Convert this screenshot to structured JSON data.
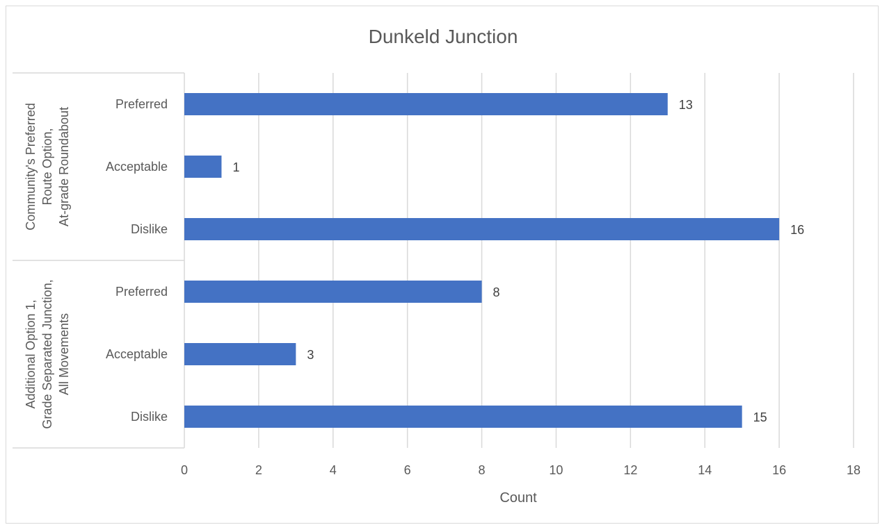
{
  "chart_data": {
    "type": "bar",
    "orientation": "horizontal",
    "title": "Dunkeld Junction",
    "xlabel": "Count",
    "ylabel": "",
    "xlim": [
      0,
      18
    ],
    "x_ticks": [
      0,
      2,
      4,
      6,
      8,
      10,
      12,
      14,
      16,
      18
    ],
    "grid": true,
    "data_labels": true,
    "bar_color": "#4472c4",
    "groups": [
      {
        "name_lines": [
          "Community's Preferred",
          "Route Option,",
          "At-grade Roundabout"
        ],
        "items": [
          {
            "category": "Preferred",
            "value": 13
          },
          {
            "category": "Acceptable",
            "value": 1
          },
          {
            "category": "Dislike",
            "value": 16
          }
        ]
      },
      {
        "name_lines": [
          "Additional Option 1,",
          "Grade Separated Junction,",
          "All Movements"
        ],
        "items": [
          {
            "category": "Preferred",
            "value": 8
          },
          {
            "category": "Acceptable",
            "value": 3
          },
          {
            "category": "Dislike",
            "value": 15
          }
        ]
      }
    ]
  }
}
